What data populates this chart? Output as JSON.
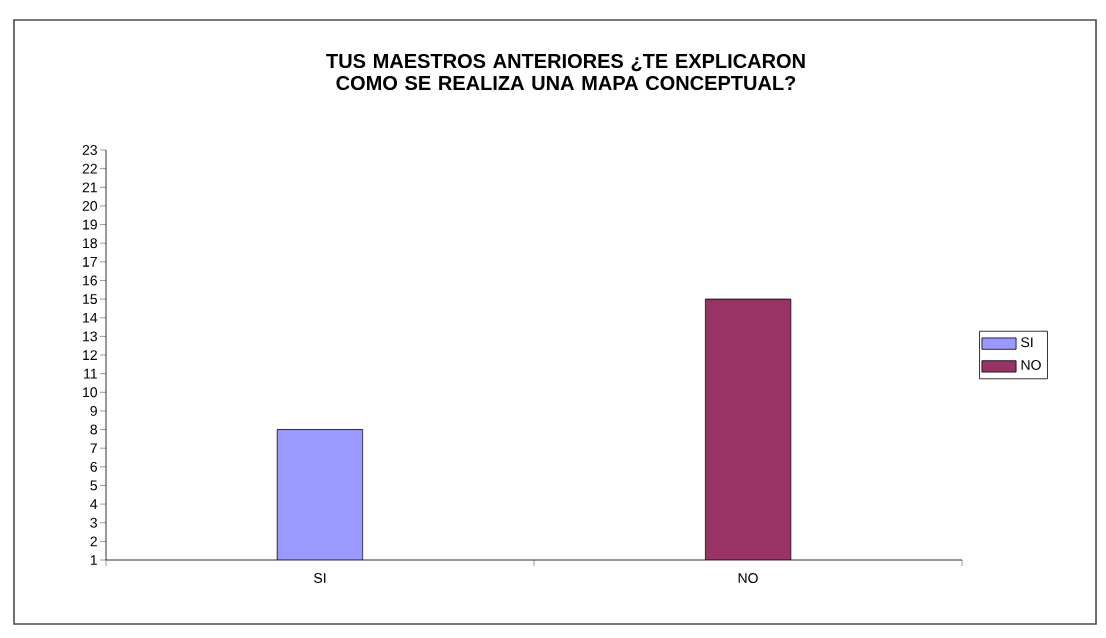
{
  "chart_data": {
    "type": "bar",
    "title": "TUS MAESTROS ANTERIORES ¿TE EXPLICARON COMO SE REALIZA UNA MAPA CONCEPTUAL?",
    "categories": [
      "SI",
      "NO"
    ],
    "series": [
      {
        "name": "SI",
        "color": "#9999ff",
        "values": [
          8,
          null
        ]
      },
      {
        "name": "NO",
        "color": "#993366",
        "values": [
          null,
          15
        ]
      }
    ],
    "ylim": [
      1,
      23
    ],
    "yticks": [
      1,
      2,
      3,
      4,
      5,
      6,
      7,
      8,
      9,
      10,
      11,
      12,
      13,
      14,
      15,
      16,
      17,
      18,
      19,
      20,
      21,
      22,
      23
    ],
    "legend": "right"
  }
}
